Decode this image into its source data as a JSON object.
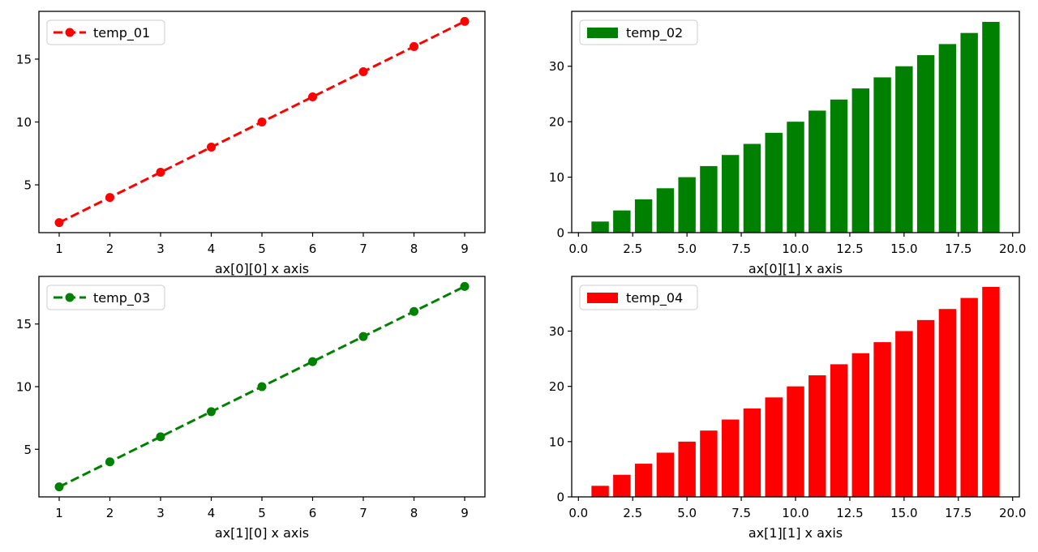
{
  "chart_data": [
    {
      "type": "line",
      "title": "",
      "xlabel": "ax[0][0] x axis",
      "ylabel": "",
      "x": [
        1,
        2,
        3,
        4,
        5,
        6,
        7,
        8,
        9
      ],
      "series": [
        {
          "name": "temp_01",
          "values": [
            2,
            4,
            6,
            8,
            10,
            12,
            14,
            16,
            18
          ],
          "color": "#ff0000",
          "linestyle": "dashed",
          "marker": "circle"
        }
      ],
      "xlim": [
        0.6,
        9.4
      ],
      "ylim": [
        1.2,
        18.8
      ],
      "xticks": [
        1,
        2,
        3,
        4,
        5,
        6,
        7,
        8,
        9
      ],
      "xtick_labels": [
        "1",
        "2",
        "3",
        "4",
        "5",
        "6",
        "7",
        "8",
        "9"
      ],
      "yticks": [
        5,
        10,
        15
      ],
      "ytick_labels": [
        "5",
        "10",
        "15"
      ],
      "legend": "upper-left",
      "grid": false
    },
    {
      "type": "bar",
      "title": "",
      "xlabel": "ax[0][1] x axis",
      "ylabel": "",
      "x": [
        1,
        2,
        3,
        4,
        5,
        6,
        7,
        8,
        9,
        10,
        11,
        12,
        13,
        14,
        15,
        16,
        17,
        18,
        19
      ],
      "series": [
        {
          "name": "temp_02",
          "values": [
            2,
            4,
            6,
            8,
            10,
            12,
            14,
            16,
            18,
            20,
            22,
            24,
            26,
            28,
            30,
            32,
            34,
            36,
            38
          ],
          "color": "#008000"
        }
      ],
      "bar_width": 0.8,
      "xlim": [
        -0.31,
        20.31
      ],
      "ylim": [
        0,
        39.9
      ],
      "xticks": [
        0,
        2.5,
        5,
        7.5,
        10,
        12.5,
        15,
        17.5,
        20
      ],
      "xtick_labels": [
        "0.0",
        "2.5",
        "5.0",
        "7.5",
        "10.0",
        "12.5",
        "15.0",
        "17.5",
        "20.0"
      ],
      "yticks": [
        0,
        10,
        20,
        30
      ],
      "ytick_labels": [
        "0",
        "10",
        "20",
        "30"
      ],
      "legend": "upper-left",
      "grid": false
    },
    {
      "type": "line",
      "title": "",
      "xlabel": "ax[1][0] x axis",
      "ylabel": "",
      "x": [
        1,
        2,
        3,
        4,
        5,
        6,
        7,
        8,
        9
      ],
      "series": [
        {
          "name": "temp_03",
          "values": [
            2,
            4,
            6,
            8,
            10,
            12,
            14,
            16,
            18
          ],
          "color": "#008000",
          "linestyle": "dashed",
          "marker": "circle"
        }
      ],
      "xlim": [
        0.6,
        9.4
      ],
      "ylim": [
        1.2,
        18.8
      ],
      "xticks": [
        1,
        2,
        3,
        4,
        5,
        6,
        7,
        8,
        9
      ],
      "xtick_labels": [
        "1",
        "2",
        "3",
        "4",
        "5",
        "6",
        "7",
        "8",
        "9"
      ],
      "yticks": [
        5,
        10,
        15
      ],
      "ytick_labels": [
        "5",
        "10",
        "15"
      ],
      "legend": "upper-left",
      "grid": false
    },
    {
      "type": "bar",
      "title": "",
      "xlabel": "ax[1][1] x axis",
      "ylabel": "",
      "x": [
        1,
        2,
        3,
        4,
        5,
        6,
        7,
        8,
        9,
        10,
        11,
        12,
        13,
        14,
        15,
        16,
        17,
        18,
        19
      ],
      "series": [
        {
          "name": "temp_04",
          "values": [
            2,
            4,
            6,
            8,
            10,
            12,
            14,
            16,
            18,
            20,
            22,
            24,
            26,
            28,
            30,
            32,
            34,
            36,
            38
          ],
          "color": "#ff0000"
        }
      ],
      "bar_width": 0.8,
      "xlim": [
        -0.31,
        20.31
      ],
      "ylim": [
        0,
        39.9
      ],
      "xticks": [
        0,
        2.5,
        5,
        7.5,
        10,
        12.5,
        15,
        17.5,
        20
      ],
      "xtick_labels": [
        "0.0",
        "2.5",
        "5.0",
        "7.5",
        "10.0",
        "12.5",
        "15.0",
        "17.5",
        "20.0"
      ],
      "yticks": [
        0,
        10,
        20,
        30
      ],
      "ytick_labels": [
        "0",
        "10",
        "20",
        "30"
      ],
      "legend": "upper-left",
      "grid": false
    }
  ]
}
